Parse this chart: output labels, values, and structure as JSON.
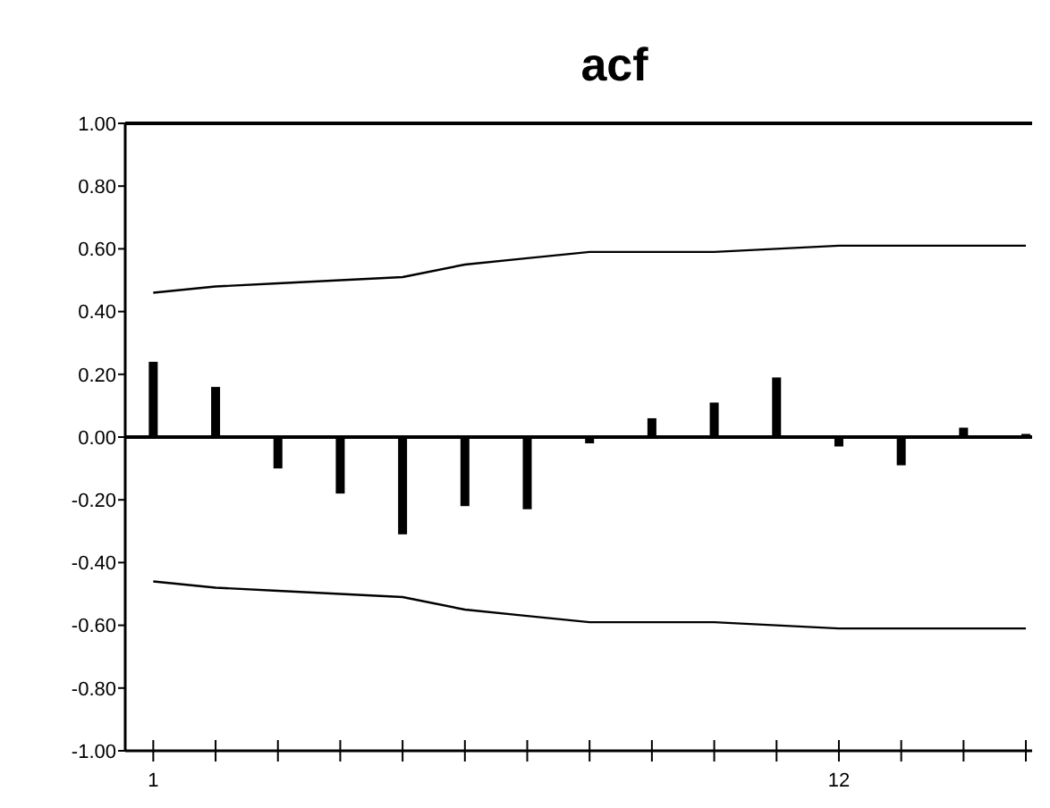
{
  "chart_data": {
    "type": "bar",
    "title": "acf",
    "x": [
      1,
      2,
      3,
      4,
      5,
      6,
      7,
      8,
      9,
      10,
      11,
      12,
      13,
      14,
      15
    ],
    "series": [
      {
        "color": "#000000",
        "values": [
          0.24,
          0.16,
          -0.1,
          -0.18,
          -0.31,
          -0.22,
          -0.23,
          -0.02,
          0.06,
          0.11,
          0.19,
          -0.03,
          -0.09,
          0.03,
          0.01
        ]
      },
      {
        "type": "line",
        "color": "#000000",
        "values": [
          0.46,
          0.48,
          0.49,
          0.5,
          0.51,
          0.55,
          0.57,
          0.59,
          0.59,
          0.59,
          0.6,
          0.61,
          0.61,
          0.61,
          0.61
        ]
      },
      {
        "type": "line",
        "color": "#000000",
        "values": [
          -0.46,
          -0.48,
          -0.49,
          -0.5,
          -0.51,
          -0.55,
          -0.57,
          -0.59,
          -0.59,
          -0.59,
          -0.6,
          -0.61,
          -0.61,
          -0.61,
          -0.61
        ]
      }
    ],
    "xlim": [
      0.55,
      15.1
    ],
    "xticks": [
      1,
      {
        "value": 2,
        "label": null
      },
      {
        "value": 3,
        "label": null
      },
      {
        "value": 4,
        "label": null
      },
      {
        "value": 5,
        "label": null
      },
      {
        "value": 6,
        "label": null
      },
      {
        "value": 7,
        "label": null
      },
      {
        "value": 8,
        "label": null
      },
      {
        "value": 9,
        "label": null
      },
      {
        "value": 10,
        "label": null
      },
      {
        "value": 11,
        "label": null
      },
      12,
      {
        "value": 13,
        "label": null
      },
      {
        "value": 14,
        "label": null
      },
      {
        "value": 15,
        "label": null
      }
    ],
    "ylim": [
      -1,
      1
    ],
    "yticks": [
      {
        "value": 1,
        "label": "1.00"
      },
      {
        "value": 0.8,
        "label": "0.80"
      },
      {
        "value": 0.6,
        "label": "0.60"
      },
      {
        "value": 0.4,
        "label": "0.40"
      },
      {
        "value": 0.2,
        "label": "0.20"
      },
      {
        "value": 0,
        "label": "0.00"
      },
      {
        "value": -0.2,
        "label": "-0.20"
      },
      {
        "value": -0.4,
        "label": "-0.40"
      },
      {
        "value": -0.6,
        "label": "-0.60"
      },
      {
        "value": -0.8,
        "label": "-0.80"
      },
      {
        "value": -1,
        "label": "-1.00"
      }
    ],
    "tick_labels": true
  }
}
